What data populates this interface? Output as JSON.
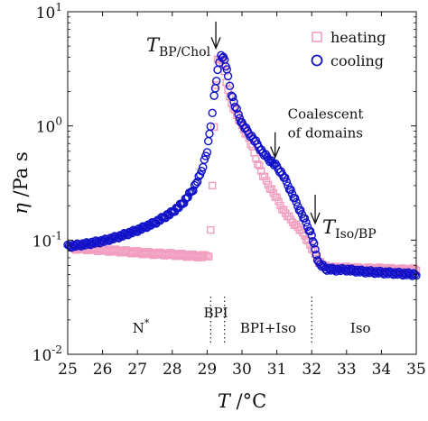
{
  "chart_data": {
    "type": "scatter",
    "xlabel": {
      "main": "T",
      "unit": " /°C"
    },
    "ylabel": {
      "main": "η",
      "unit": " /Pa s"
    },
    "xlim": [
      25,
      35
    ],
    "ylim": [
      0.01,
      10
    ],
    "yscale": "log",
    "grid": false,
    "legend_position": "top-right",
    "x_ticks": [
      25,
      26,
      27,
      28,
      29,
      30,
      31,
      32,
      33,
      34,
      35
    ],
    "y_ticks": [
      {
        "value": 10,
        "base": "10",
        "exp": "1"
      },
      {
        "value": 1,
        "base": "10",
        "exp": "0"
      },
      {
        "value": 0.1,
        "base": "10",
        "exp": "-1"
      },
      {
        "value": 0.01,
        "base": "10",
        "exp": "-2"
      }
    ],
    "series": [
      {
        "name": "heating",
        "marker": "square",
        "color": "#f19ec0",
        "points": [
          [
            25.1,
            0.085
          ],
          [
            25.5,
            0.084
          ],
          [
            26.0,
            0.082
          ],
          [
            26.5,
            0.08
          ],
          [
            27.0,
            0.078
          ],
          [
            27.5,
            0.076
          ],
          [
            28.0,
            0.075
          ],
          [
            28.5,
            0.073
          ],
          [
            28.9,
            0.072
          ],
          [
            29.05,
            0.074
          ],
          [
            29.1,
            0.12
          ],
          [
            29.15,
            0.3
          ],
          [
            29.2,
            1.0
          ],
          [
            29.25,
            2.2
          ],
          [
            29.3,
            3.8
          ],
          [
            29.4,
            3.9
          ],
          [
            29.5,
            3.0
          ],
          [
            29.6,
            2.0
          ],
          [
            29.7,
            1.6
          ],
          [
            29.8,
            1.35
          ],
          [
            29.9,
            1.15
          ],
          [
            30.0,
            1.0
          ],
          [
            30.2,
            0.78
          ],
          [
            30.4,
            0.52
          ],
          [
            30.6,
            0.37
          ],
          [
            30.8,
            0.29
          ],
          [
            31.0,
            0.23
          ],
          [
            31.2,
            0.18
          ],
          [
            31.4,
            0.15
          ],
          [
            31.6,
            0.13
          ],
          [
            31.8,
            0.11
          ],
          [
            32.0,
            0.085
          ],
          [
            32.2,
            0.065
          ],
          [
            32.4,
            0.058
          ],
          [
            32.7,
            0.057
          ],
          [
            33.0,
            0.057
          ],
          [
            33.5,
            0.056
          ],
          [
            34.0,
            0.056
          ],
          [
            34.5,
            0.055
          ],
          [
            35.0,
            0.055
          ]
        ]
      },
      {
        "name": "cooling",
        "marker": "circle",
        "color": "#1010c8",
        "points": [
          [
            25.0,
            0.088
          ],
          [
            25.5,
            0.092
          ],
          [
            26.0,
            0.098
          ],
          [
            26.5,
            0.108
          ],
          [
            27.0,
            0.122
          ],
          [
            27.5,
            0.142
          ],
          [
            28.0,
            0.175
          ],
          [
            28.3,
            0.21
          ],
          [
            28.6,
            0.28
          ],
          [
            28.8,
            0.37
          ],
          [
            29.0,
            0.6
          ],
          [
            29.1,
            1.0
          ],
          [
            29.2,
            1.8
          ],
          [
            29.3,
            3.0
          ],
          [
            29.4,
            4.2
          ],
          [
            29.5,
            3.8
          ],
          [
            29.6,
            2.7
          ],
          [
            29.7,
            1.9
          ],
          [
            29.8,
            1.5
          ],
          [
            29.9,
            1.25
          ],
          [
            30.0,
            1.05
          ],
          [
            30.2,
            0.86
          ],
          [
            30.4,
            0.72
          ],
          [
            30.6,
            0.58
          ],
          [
            30.8,
            0.5
          ],
          [
            31.0,
            0.44
          ],
          [
            31.2,
            0.36
          ],
          [
            31.4,
            0.27
          ],
          [
            31.6,
            0.2
          ],
          [
            31.8,
            0.15
          ],
          [
            32.0,
            0.11
          ],
          [
            32.1,
            0.082
          ],
          [
            32.2,
            0.063
          ],
          [
            32.4,
            0.056
          ],
          [
            32.7,
            0.055
          ],
          [
            33.0,
            0.055
          ],
          [
            33.5,
            0.053
          ],
          [
            34.0,
            0.052
          ],
          [
            34.5,
            0.051
          ],
          [
            35.0,
            0.05
          ]
        ]
      }
    ],
    "phase_lines": [
      29.1,
      29.5,
      32.0
    ],
    "phase_labels": [
      {
        "text": "N*",
        "x": 27.1,
        "y": 0.017
      },
      {
        "text": "BPI",
        "x": 29.25,
        "y": 0.023
      },
      {
        "text": "BPI+Iso",
        "x": 30.75,
        "y": 0.017
      },
      {
        "text": "Iso",
        "x": 33.4,
        "y": 0.017
      }
    ],
    "annotations": [
      {
        "main": "T",
        "sub": "BP/Chol",
        "x": 29.25,
        "y_text": 5.1,
        "arrow_from": 8.2,
        "arrow_to": 4.8
      },
      {
        "main": "T",
        "sub": "Iso/BP",
        "x": 32.1,
        "y_text": 0.13,
        "arrow_from": 0.25,
        "arrow_to": 0.14
      },
      {
        "text_lines": [
          "Coalescent",
          "of domains"
        ],
        "x": 30.95,
        "y_text": 1.2,
        "arrow_from": 0.88,
        "arrow_to": 0.53
      }
    ]
  }
}
